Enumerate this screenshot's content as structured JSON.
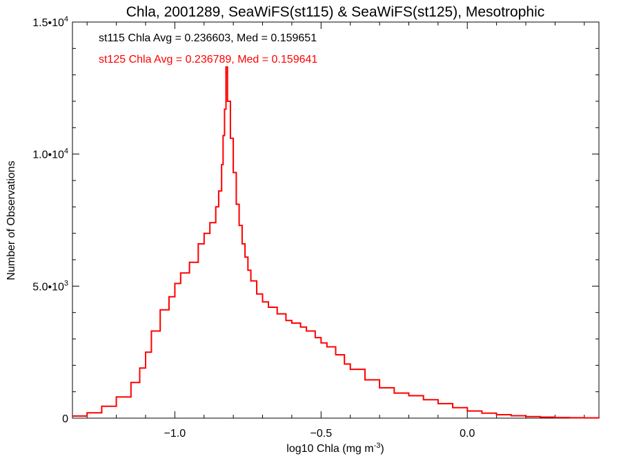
{
  "chart_data": {
    "type": "line",
    "title": "Chla, 2001289, SeaWiFS(st115) & SeaWiFS(st125), Mesotrophic",
    "xlabel_main": "log10 Chla (mg m",
    "xlabel_sup": "-3",
    "xlabel_tail": ")",
    "ylabel": "Number of Observations",
    "xlim": [
      -1.35,
      0.45
    ],
    "ylim": [
      0,
      15000
    ],
    "x_ticks": [
      {
        "value": -1.0,
        "label": "−1.0"
      },
      {
        "value": -0.5,
        "label": "−0.5"
      },
      {
        "value": 0.0,
        "label": "0.0"
      }
    ],
    "y_ticks": [
      {
        "value": 0,
        "label": "0",
        "sup": ""
      },
      {
        "value": 5000,
        "label": "5.0•10",
        "sup": "3"
      },
      {
        "value": 10000,
        "label": "1.0•10",
        "sup": "4"
      },
      {
        "value": 15000,
        "label": "1.5•10",
        "sup": "4"
      }
    ],
    "grid": false,
    "annotations": [
      {
        "text": "st115 Chla Avg = 0.236603, Med = 0.159651",
        "color": "#000000"
      },
      {
        "text": "st125 Chla Avg = 0.236789, Med = 0.159641",
        "color": "#ff0000"
      }
    ],
    "series": [
      {
        "name": "st115",
        "color": "#000000",
        "x": [
          -1.35,
          -1.3,
          -1.25,
          -1.2,
          -1.15,
          -1.12,
          -1.1,
          -1.08,
          -1.05,
          -1.02,
          -1.0,
          -0.98,
          -0.95,
          -0.92,
          -0.9,
          -0.88,
          -0.86,
          -0.85,
          -0.84,
          -0.835,
          -0.83,
          -0.825,
          -0.82,
          -0.81,
          -0.8,
          -0.79,
          -0.78,
          -0.77,
          -0.76,
          -0.75,
          -0.74,
          -0.72,
          -0.7,
          -0.68,
          -0.65,
          -0.62,
          -0.6,
          -0.57,
          -0.55,
          -0.52,
          -0.5,
          -0.48,
          -0.45,
          -0.42,
          -0.4,
          -0.35,
          -0.3,
          -0.25,
          -0.2,
          -0.15,
          -0.1,
          -0.05,
          0.0,
          0.05,
          0.1,
          0.15,
          0.2,
          0.25,
          0.3,
          0.35,
          0.4,
          0.45
        ],
        "y": [
          80,
          200,
          450,
          800,
          1350,
          1900,
          2500,
          3300,
          4100,
          4600,
          5100,
          5500,
          5900,
          6600,
          7000,
          7400,
          8000,
          8600,
          9600,
          10700,
          11700,
          13100,
          12000,
          10600,
          9300,
          8100,
          7300,
          6600,
          6100,
          5600,
          5200,
          4700,
          4400,
          4200,
          3950,
          3700,
          3600,
          3450,
          3300,
          3050,
          2850,
          2700,
          2400,
          2050,
          1850,
          1450,
          1150,
          950,
          850,
          700,
          550,
          400,
          270,
          190,
          130,
          90,
          60,
          40,
          25,
          15,
          10,
          5
        ]
      },
      {
        "name": "st125",
        "color": "#ff0000",
        "x": [
          -1.35,
          -1.3,
          -1.25,
          -1.2,
          -1.15,
          -1.12,
          -1.1,
          -1.08,
          -1.05,
          -1.02,
          -1.0,
          -0.98,
          -0.95,
          -0.92,
          -0.9,
          -0.88,
          -0.86,
          -0.85,
          -0.84,
          -0.835,
          -0.83,
          -0.825,
          -0.82,
          -0.81,
          -0.8,
          -0.79,
          -0.78,
          -0.77,
          -0.76,
          -0.75,
          -0.74,
          -0.72,
          -0.7,
          -0.68,
          -0.65,
          -0.62,
          -0.6,
          -0.57,
          -0.55,
          -0.52,
          -0.5,
          -0.48,
          -0.45,
          -0.42,
          -0.4,
          -0.35,
          -0.3,
          -0.25,
          -0.2,
          -0.15,
          -0.1,
          -0.05,
          0.0,
          0.05,
          0.1,
          0.15,
          0.2,
          0.25,
          0.3,
          0.35,
          0.4,
          0.45
        ],
        "y": [
          80,
          200,
          450,
          800,
          1350,
          1900,
          2500,
          3300,
          4100,
          4600,
          5100,
          5500,
          5900,
          6600,
          7000,
          7400,
          8000,
          8600,
          9600,
          10700,
          11700,
          13300,
          12000,
          10600,
          9300,
          8100,
          7300,
          6600,
          6100,
          5600,
          5200,
          4700,
          4400,
          4200,
          3950,
          3700,
          3600,
          3450,
          3300,
          3050,
          2850,
          2700,
          2400,
          2050,
          1850,
          1450,
          1150,
          950,
          850,
          700,
          550,
          400,
          270,
          190,
          130,
          90,
          60,
          40,
          25,
          15,
          10,
          5
        ]
      }
    ]
  }
}
